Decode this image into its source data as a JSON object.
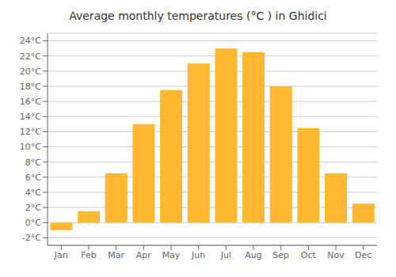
{
  "chart_data": {
    "type": "bar",
    "title": "Average monthly temperatures (°C ) in Ghidici",
    "categories": [
      "Jan",
      "Feb",
      "Mar",
      "Apr",
      "May",
      "Jun",
      "Jul",
      "Aug",
      "Sep",
      "Oct",
      "Nov",
      "Dec"
    ],
    "values": [
      -1.0,
      1.5,
      6.5,
      13.0,
      17.5,
      21.0,
      23.0,
      22.5,
      18.0,
      12.5,
      6.5,
      2.5
    ],
    "color": "#FFB830",
    "ylim": [
      -3,
      25
    ],
    "yticks": [
      {
        "value": -2,
        "label": "-2°C"
      },
      {
        "value": 0,
        "label": "0°C"
      },
      {
        "value": 2,
        "label": "2°C"
      },
      {
        "value": 4,
        "label": "4°C"
      },
      {
        "value": 6,
        "label": "6°C"
      },
      {
        "value": 8,
        "label": "8°C"
      },
      {
        "value": 10,
        "label": "10°C"
      },
      {
        "value": 12,
        "label": "12°C"
      },
      {
        "value": 14,
        "label": "14°C"
      },
      {
        "value": 16,
        "label": "16°C"
      },
      {
        "value": 18,
        "label": "18°C"
      },
      {
        "value": 20,
        "label": "20°C"
      },
      {
        "value": 22,
        "label": "22°C"
      },
      {
        "value": 24,
        "label": "24°C"
      }
    ],
    "grid": true
  }
}
